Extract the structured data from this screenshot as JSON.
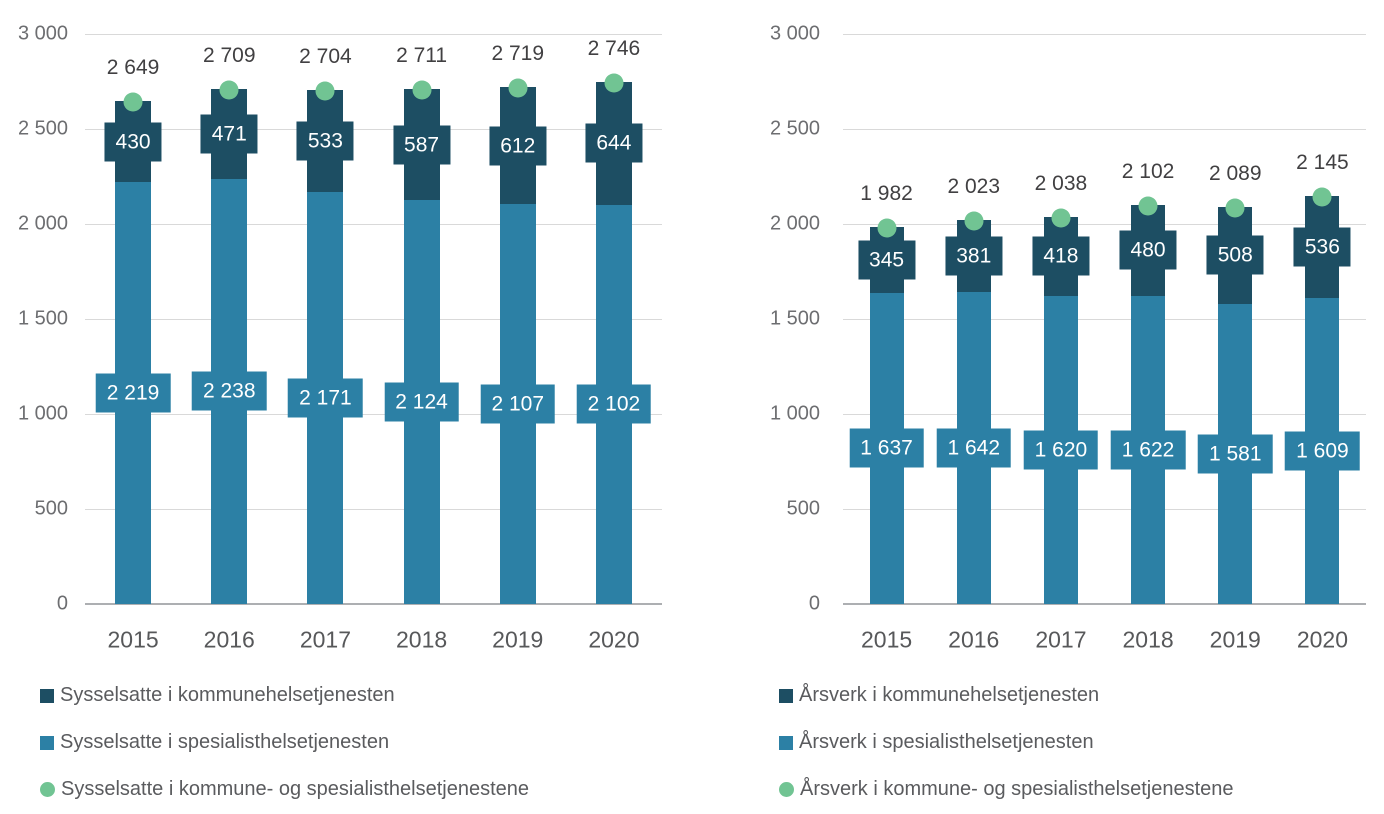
{
  "colors": {
    "dark_blue": "#1d4e63",
    "light_blue": "#2c80a5",
    "green": "#71c493",
    "gridline": "#d9d9d9",
    "baseline": "#adafb2",
    "axis_text": "#6d6e71",
    "year_text": "#57585a",
    "total_text": "#414042",
    "legend_text": "#5a5b5e",
    "bar_label_text": "#ffffff"
  },
  "chart_data": [
    {
      "type": "bar",
      "stacked": true,
      "title": "",
      "xlabel": "",
      "ylabel": "",
      "categories": [
        "2015",
        "2016",
        "2017",
        "2018",
        "2019",
        "2020"
      ],
      "series": [
        {
          "name": "Sysselsatte i kommunehelsetjenesten",
          "role": "dark",
          "marker": "square",
          "values": [
            430,
            471,
            533,
            587,
            612,
            644
          ]
        },
        {
          "name": "Sysselsatte i spesialisthelsetjenesten",
          "role": "light",
          "marker": "square",
          "values": [
            2219,
            2238,
            2171,
            2124,
            2107,
            2102
          ]
        },
        {
          "name": "Sysselsatte i kommune- og spesialisthelsetjenestene",
          "role": "total-dot",
          "marker": "circle",
          "values": [
            2649,
            2709,
            2704,
            2711,
            2719,
            2746
          ]
        }
      ],
      "ylim": [
        0,
        3000
      ],
      "yticks": [
        0,
        500,
        1000,
        1500,
        2000,
        2500,
        3000
      ],
      "grid": true,
      "legend_position": "bottom"
    },
    {
      "type": "bar",
      "stacked": true,
      "title": "",
      "xlabel": "",
      "ylabel": "",
      "categories": [
        "2015",
        "2016",
        "2017",
        "2018",
        "2019",
        "2020"
      ],
      "series": [
        {
          "name": "Årsverk i kommunehelsetjenesten",
          "role": "dark",
          "marker": "square",
          "values": [
            345,
            381,
            418,
            480,
            508,
            536
          ]
        },
        {
          "name": "Årsverk i spesialisthelsetjenesten",
          "role": "light",
          "marker": "square",
          "values": [
            1637,
            1642,
            1620,
            1622,
            1581,
            1609
          ]
        },
        {
          "name": "Årsverk i kommune- og spesialisthelsetjenestene",
          "role": "total-dot",
          "marker": "circle",
          "values": [
            1982,
            2023,
            2038,
            2102,
            2089,
            2145
          ]
        }
      ],
      "ylim": [
        0,
        3000
      ],
      "yticks": [
        0,
        500,
        1000,
        1500,
        2000,
        2500,
        3000
      ],
      "grid": true,
      "legend_position": "bottom"
    }
  ]
}
